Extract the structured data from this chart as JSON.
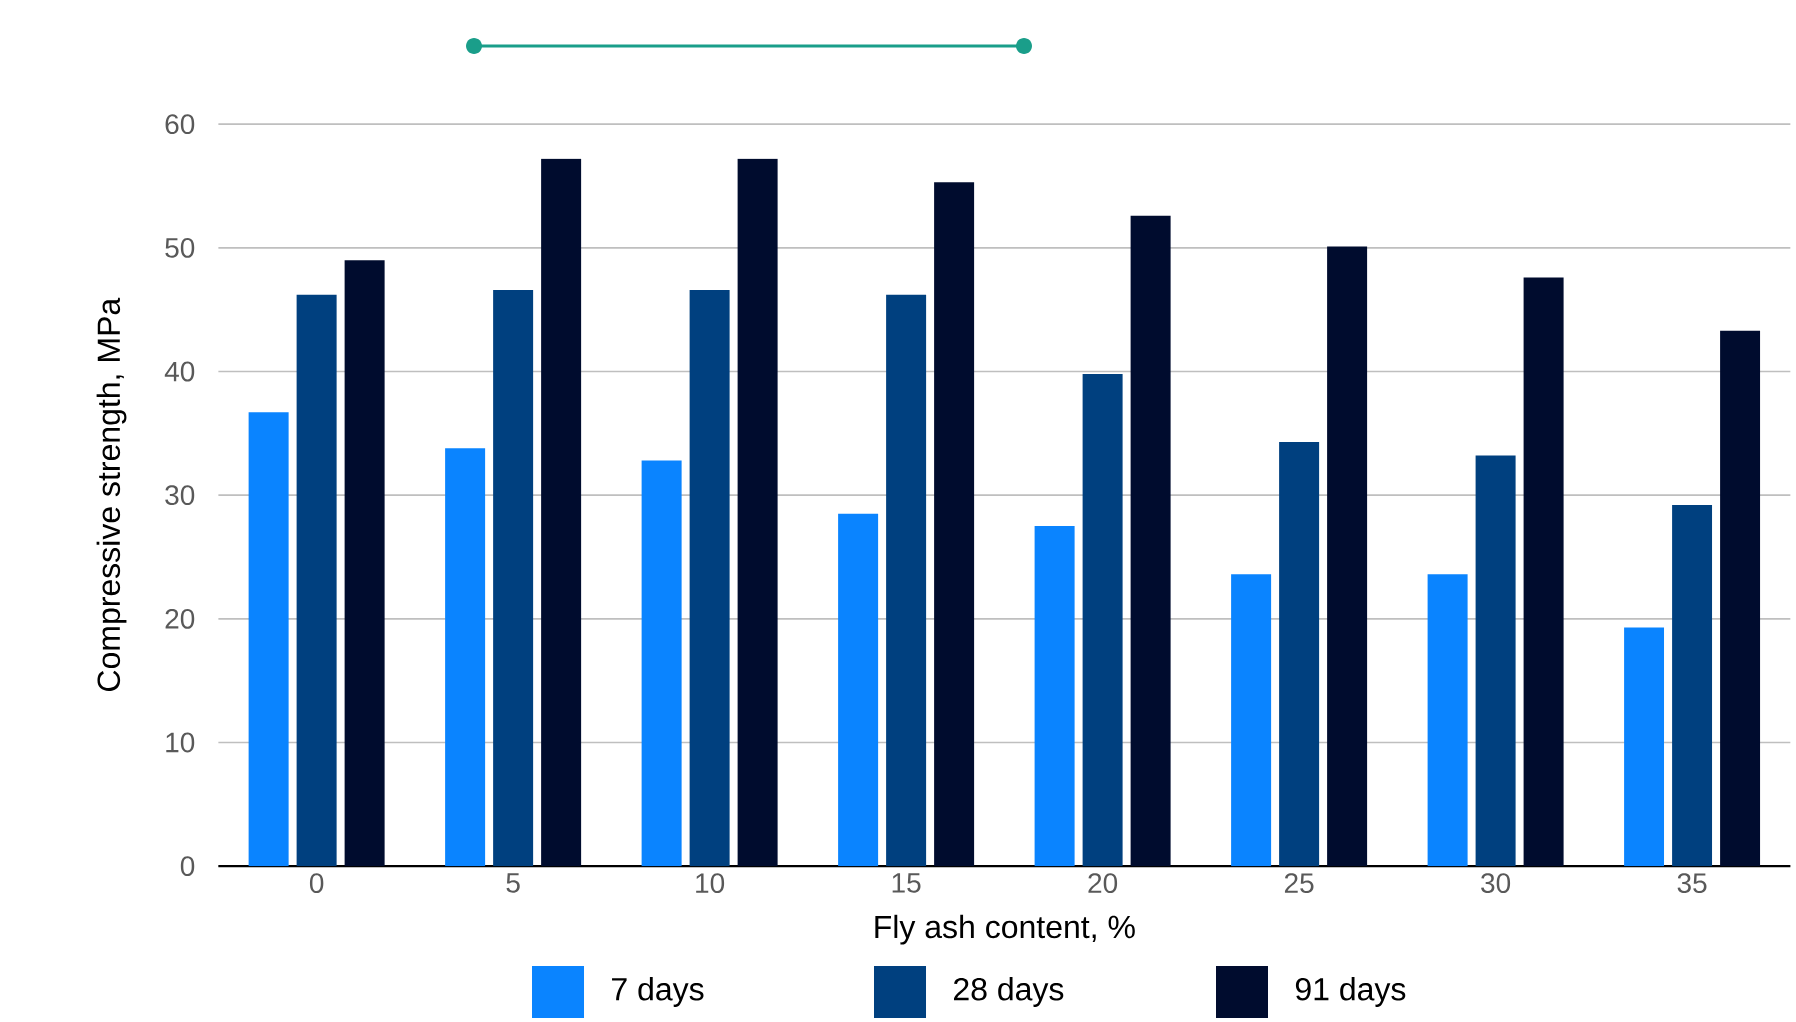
{
  "chart_data": {
    "type": "bar",
    "xlabel": "Fly ash content, %",
    "ylabel": "Compressive strength, MPa",
    "categories": [
      "0",
      "5",
      "10",
      "15",
      "20",
      "25",
      "30",
      "35"
    ],
    "series": [
      {
        "name": "7 days",
        "color": "#0a84ff",
        "values": [
          36.7,
          33.8,
          32.8,
          28.5,
          27.5,
          23.6,
          23.6,
          19.3
        ]
      },
      {
        "name": "28 days",
        "color": "#00407f",
        "values": [
          46.2,
          46.6,
          46.6,
          46.2,
          39.8,
          34.3,
          33.2,
          29.2
        ]
      },
      {
        "name": "91 days",
        "color": "#000c2e",
        "values": [
          49.0,
          57.2,
          57.2,
          55.3,
          52.6,
          50.1,
          47.6,
          43.3
        ]
      }
    ],
    "ylim": [
      0,
      60
    ],
    "yticks": [
      0,
      10,
      20,
      30,
      40,
      50,
      60
    ],
    "grid": "y",
    "legend": "bottom"
  }
}
